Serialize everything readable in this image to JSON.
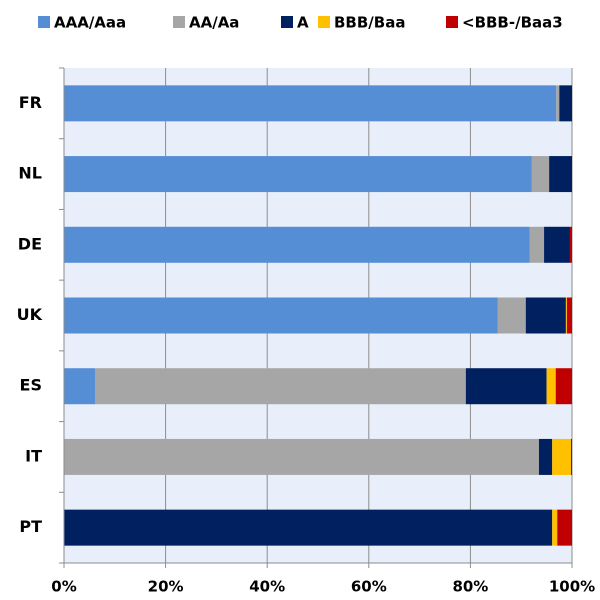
{
  "chart_data": {
    "type": "stacked-bar-horizontal",
    "categories": [
      "FR",
      "NL",
      "DE",
      "UK",
      "ES",
      "IT",
      "PT"
    ],
    "series": [
      {
        "name": "AAA/Aaa",
        "color": "#558ed5",
        "values": [
          96.9,
          92.1,
          91.7,
          85.4,
          6.1,
          0,
          0
        ]
      },
      {
        "name": "AA/Aa",
        "color": "#a6a6a6",
        "values": [
          0.6,
          3.4,
          2.8,
          5.5,
          73.0,
          93.5,
          0
        ]
      },
      {
        "name": "A",
        "color": "#002060",
        "values": [
          2.5,
          4.5,
          5.1,
          7.9,
          15.9,
          2.6,
          96.1
        ]
      },
      {
        "name": "BBB/Baa",
        "color": "#ffc000",
        "values": [
          0,
          0,
          0,
          0.2,
          1.8,
          3.7,
          1.0
        ]
      },
      {
        "name": "<BBB-/Baa3",
        "color": "#c00000",
        "values": [
          0,
          0,
          0.4,
          1.0,
          3.2,
          0.2,
          2.9
        ]
      }
    ],
    "xlim": [
      0,
      100
    ],
    "xticks": [
      {
        "value": 0,
        "label": "0%"
      },
      {
        "value": 20,
        "label": "20%"
      },
      {
        "value": 40,
        "label": "40%"
      },
      {
        "value": 60,
        "label": "60%"
      },
      {
        "value": 80,
        "label": "80%"
      },
      {
        "value": 100,
        "label": "100%"
      }
    ],
    "grid": true,
    "legend": "top"
  }
}
